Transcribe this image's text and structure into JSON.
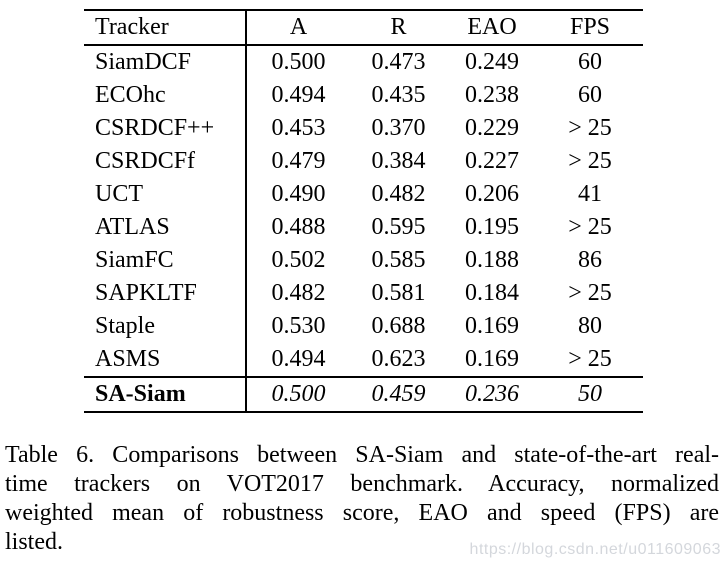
{
  "table": {
    "columns": [
      "Tracker",
      "A",
      "R",
      "EAO",
      "FPS"
    ],
    "rows": [
      [
        "SiamDCF",
        "0.500",
        "0.473",
        "0.249",
        "60"
      ],
      [
        "ECOhc",
        "0.494",
        "0.435",
        "0.238",
        "60"
      ],
      [
        "CSRDCF++",
        "0.453",
        "0.370",
        "0.229",
        "> 25"
      ],
      [
        "CSRDCFf",
        "0.479",
        "0.384",
        "0.227",
        "> 25"
      ],
      [
        "UCT",
        "0.490",
        "0.482",
        "0.206",
        "41"
      ],
      [
        "ATLAS",
        "0.488",
        "0.595",
        "0.195",
        "> 25"
      ],
      [
        "SiamFC",
        "0.502",
        "0.585",
        "0.188",
        "86"
      ],
      [
        "SAPKLTF",
        "0.482",
        "0.581",
        "0.184",
        "> 25"
      ],
      [
        "Staple",
        "0.530",
        "0.688",
        "0.169",
        "80"
      ],
      [
        "ASMS",
        "0.494",
        "0.623",
        "0.169",
        "> 25"
      ]
    ],
    "highlight_row": [
      "SA-Siam",
      "0.500",
      "0.459",
      "0.236",
      "50"
    ]
  },
  "caption": {
    "lines": [
      "Table 6. Comparisons between SA-Siam and state-of-the-art real-",
      "time trackers on VOT2017 benchmark.  Accuracy, normalized",
      "weighted mean of robustness score, EAO and speed (FPS) are",
      "listed."
    ]
  },
  "watermark": {
    "text": "https://blog.csdn.net/u011609063"
  },
  "colors": {
    "text": "#000000",
    "rule": "#000000",
    "background": "#ffffff",
    "watermark": "#d4d7dc"
  }
}
